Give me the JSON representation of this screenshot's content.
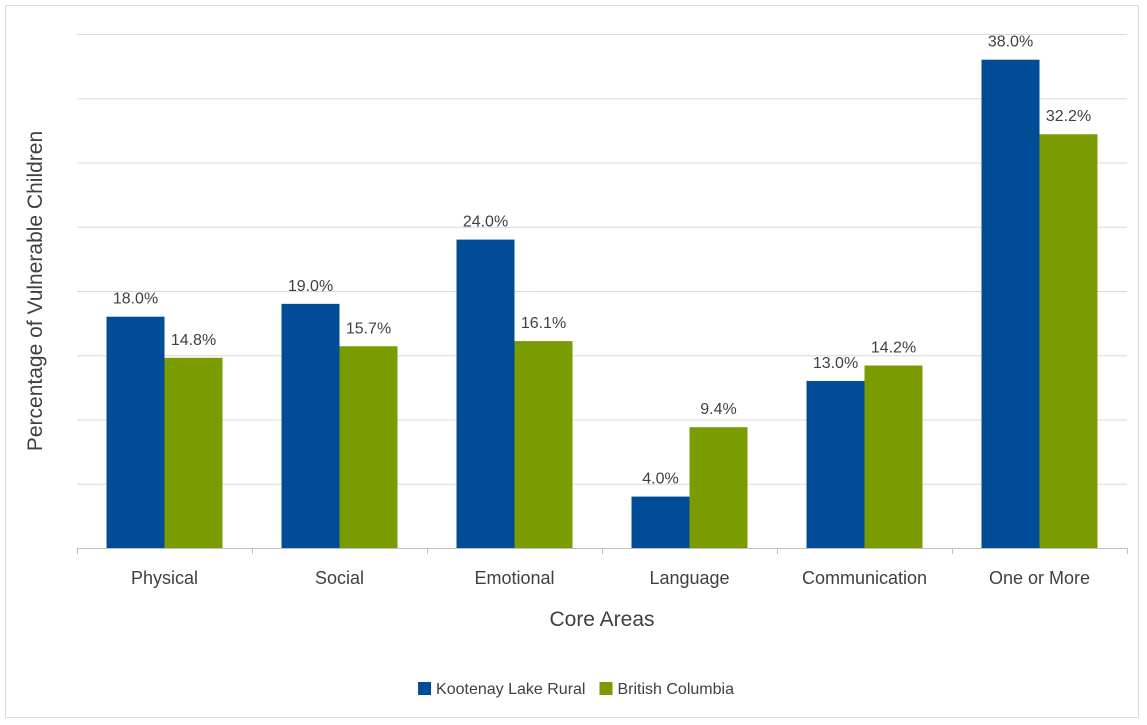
{
  "chart_data": {
    "type": "bar",
    "title": "",
    "xlabel": "Core Areas",
    "ylabel": "Percentage of Vulnerable Children",
    "categories": [
      "Physical",
      "Social",
      "Emotional",
      "Language",
      "Communication",
      "One or More"
    ],
    "series": [
      {
        "name": "Kootenay Lake Rural",
        "color": "#004c97",
        "values": [
          18.0,
          19.0,
          24.0,
          4.0,
          13.0,
          38.0
        ],
        "labels": [
          "18.0%",
          "19.0%",
          "24.0%",
          "4.0%",
          "13.0%",
          "38.0%"
        ]
      },
      {
        "name": "British Columbia",
        "color": "#7a9c01",
        "values": [
          14.8,
          15.7,
          16.1,
          9.4,
          14.2,
          32.2
        ],
        "labels": [
          "14.8%",
          "15.7%",
          "16.1%",
          "9.4%",
          "14.2%",
          "32.2%"
        ]
      }
    ],
    "ylim": [
      0,
      40
    ],
    "y_gridline_step": 5,
    "y_tick_labels_shown": false,
    "grid": true,
    "legend_position": "bottom"
  }
}
